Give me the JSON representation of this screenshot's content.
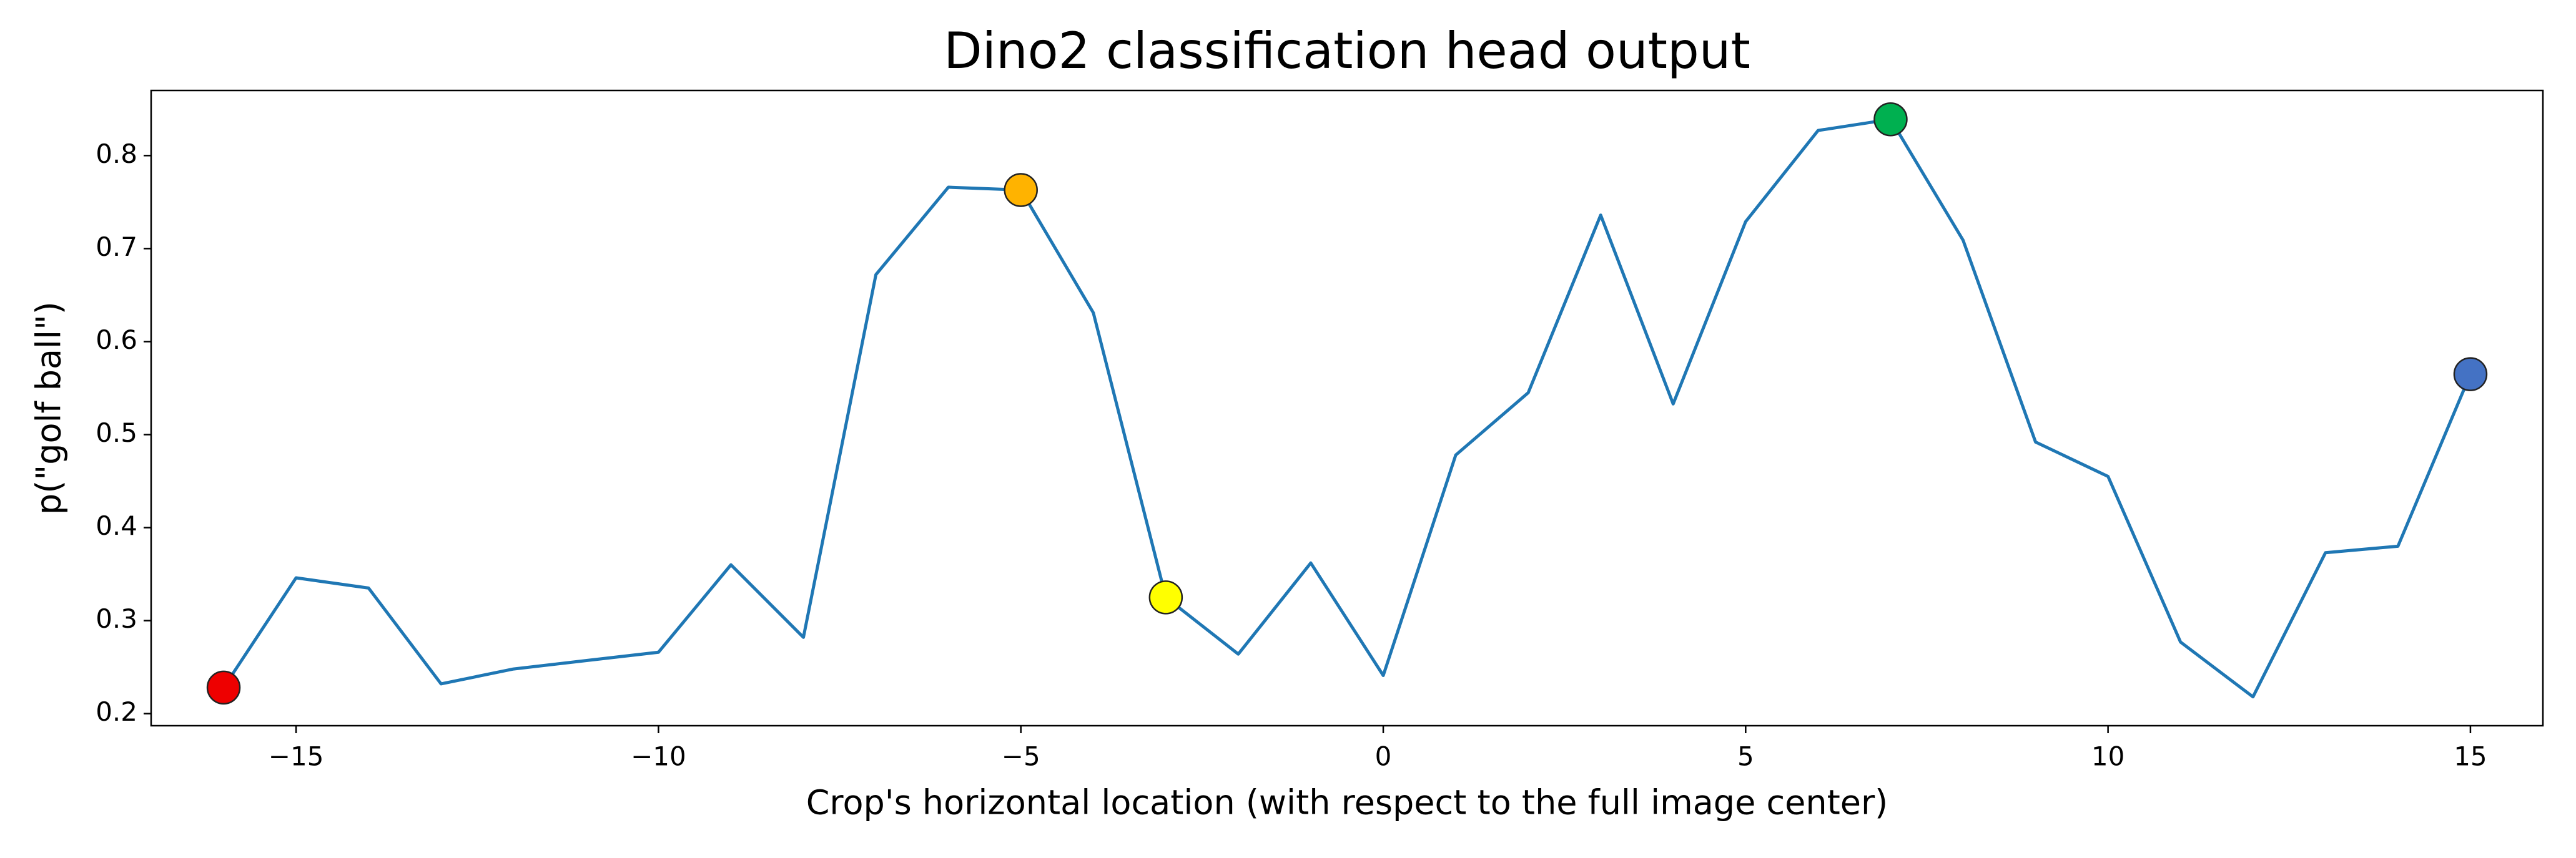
{
  "chart_data": {
    "type": "line",
    "title": "Dino2 classification head output",
    "xlabel": "Crop's horizontal location (with respect to the full image center)",
    "ylabel": "p(\"golf ball\")",
    "x": [
      -16,
      -15,
      -14,
      -13,
      -12,
      -11,
      -10,
      -9,
      -8,
      -7,
      -6,
      -5,
      -4,
      -3,
      -2,
      -1,
      0,
      1,
      2,
      3,
      4,
      5,
      6,
      7,
      8,
      9,
      10,
      11,
      12,
      13,
      14,
      15
    ],
    "values": [
      0.228,
      0.346,
      0.335,
      0.232,
      0.248,
      0.257,
      0.266,
      0.36,
      0.282,
      0.672,
      0.766,
      0.763,
      0.631,
      0.325,
      0.264,
      0.362,
      0.241,
      0.478,
      0.545,
      0.736,
      0.533,
      0.729,
      0.827,
      0.839,
      0.709,
      0.492,
      0.455,
      0.277,
      0.218,
      0.373,
      0.38,
      0.565
    ],
    "color": "#1f77b4",
    "highlights": [
      {
        "x": -16,
        "color": "#ee0000"
      },
      {
        "x": -5,
        "color": "#ffb300"
      },
      {
        "x": -3,
        "color": "#ffff00"
      },
      {
        "x": 7,
        "color": "#00b050"
      },
      {
        "x": 15,
        "color": "#4472c4"
      }
    ],
    "xlim": [
      -17,
      16
    ],
    "xticks": [
      {
        "value": -15,
        "label": "−15"
      },
      {
        "value": -10,
        "label": "−10"
      },
      {
        "value": -5,
        "label": "−5"
      },
      0,
      5,
      10,
      15
    ],
    "ylim": [
      0.187,
      0.87
    ],
    "yticks": [
      0.2,
      0.3,
      0.4,
      0.5,
      0.6,
      0.7,
      0.8
    ]
  }
}
